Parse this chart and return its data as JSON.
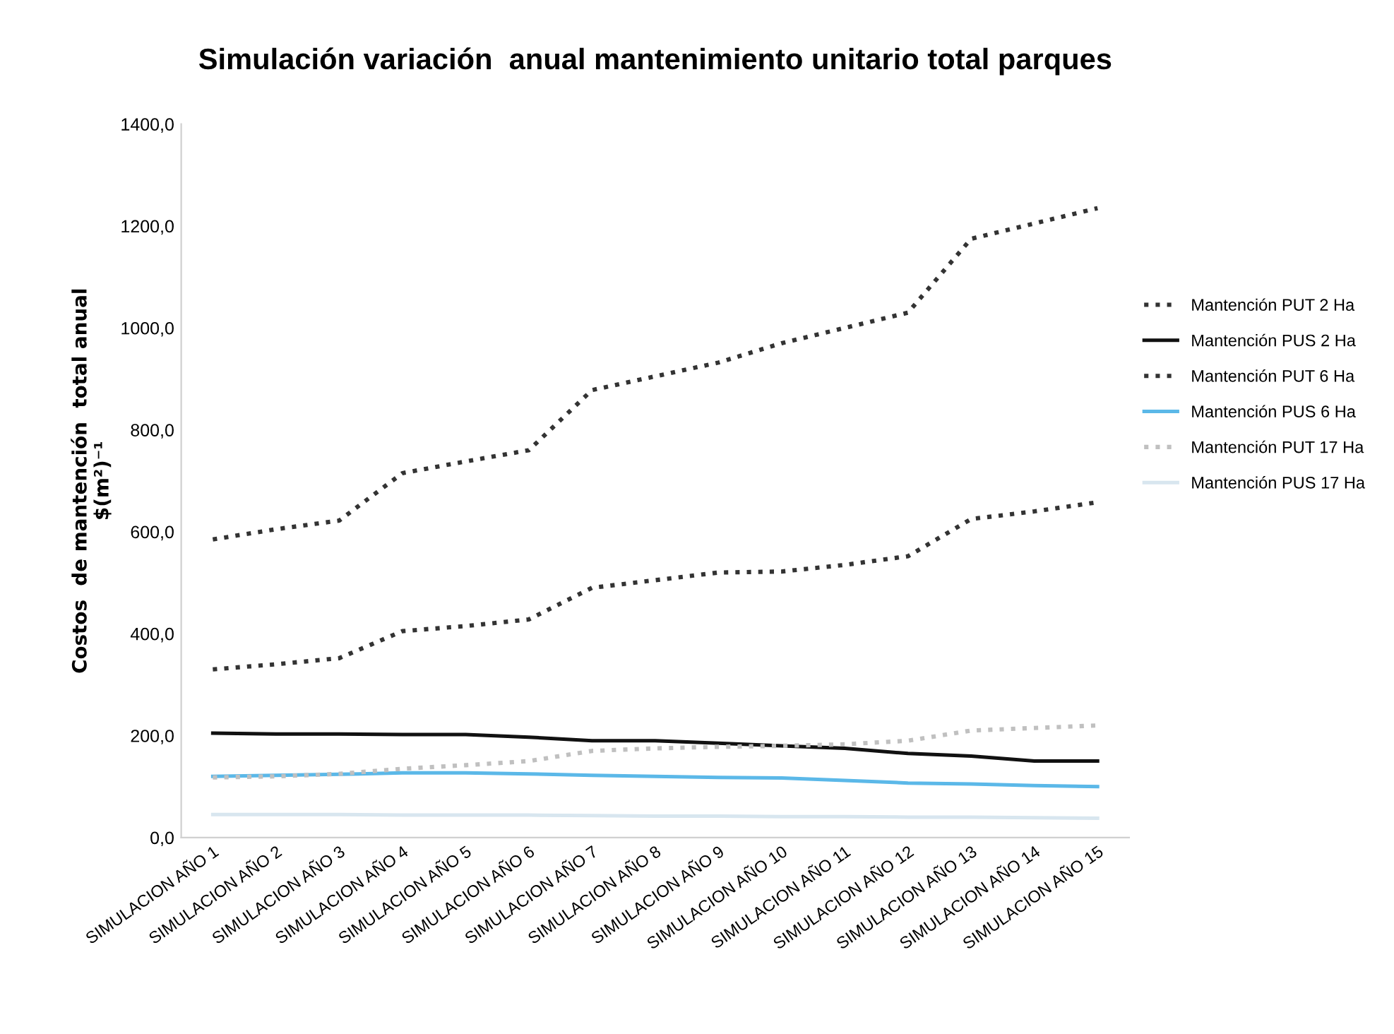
{
  "chart_data": {
    "type": "line",
    "title": "Simulación variación  anual mantenimiento unitario total parques",
    "ylabel": "Costos  de mantención  total anual\n$(m²)⁻¹",
    "categories": [
      "SIMULACION AÑO 1",
      "SIMULACION AÑO 2",
      "SIMULACION AÑO 3",
      "SIMULACION AÑO 4",
      "SIMULACION AÑO 5",
      "SIMULACION AÑO 6",
      "SIMULACION AÑO 7",
      "SIMULACION AÑO 8",
      "SIMULACION AÑO 9",
      "SIMULACION AÑO 10",
      "SIMULACION AÑO 11",
      "SIMULACION AÑO 12",
      "SIMULACION AÑO 13",
      "SIMULACION AÑO 14",
      "SIMULACION AÑO 15"
    ],
    "series": [
      {
        "name": "Mantención PUT 2 Ha",
        "color": "#333333",
        "line_style": "dotted",
        "values": [
          585,
          605,
          622,
          715,
          738,
          760,
          878,
          905,
          932,
          970,
          1000,
          1030,
          1175,
          1205,
          1235
        ]
      },
      {
        "name": "Mantención PUS 2 Ha",
        "color": "#111111",
        "line_style": "solid",
        "values": [
          205,
          203,
          203,
          202,
          202,
          197,
          190,
          190,
          185,
          180,
          175,
          165,
          160,
          150,
          150
        ]
      },
      {
        "name": "Mantención PUT 6 Ha",
        "color": "#333333",
        "line_style": "dotted",
        "values": [
          330,
          340,
          352,
          405,
          415,
          428,
          490,
          505,
          520,
          522,
          535,
          552,
          625,
          640,
          658
        ]
      },
      {
        "name": "Mantención PUS 6 Ha",
        "color": "#5bb8e8",
        "line_style": "solid",
        "values": [
          120,
          122,
          124,
          127,
          127,
          125,
          122,
          120,
          118,
          117,
          112,
          107,
          105,
          102,
          100
        ]
      },
      {
        "name": "Mantención PUT 17 Ha",
        "color": "#c0c0c0",
        "line_style": "dotted",
        "values": [
          118,
          120,
          125,
          135,
          142,
          150,
          170,
          175,
          178,
          180,
          183,
          190,
          210,
          215,
          220
        ]
      },
      {
        "name": "Mantención PUS 17 Ha",
        "color": "#d8e6ef",
        "line_style": "solid",
        "values": [
          45,
          45,
          45,
          44,
          44,
          44,
          43,
          42,
          42,
          41,
          41,
          40,
          40,
          39,
          38
        ]
      }
    ],
    "ylim": [
      0,
      1400
    ],
    "yticks": [
      {
        "value": 0,
        "label": "0,0"
      },
      {
        "value": 200,
        "label": "200,0"
      },
      {
        "value": 400,
        "label": "400,0"
      },
      {
        "value": 600,
        "label": "600,0"
      },
      {
        "value": 800,
        "label": "800,0"
      },
      {
        "value": 1000,
        "label": "1000,0"
      },
      {
        "value": 1200,
        "label": "1200,0"
      },
      {
        "value": 1400,
        "label": "1400,0"
      }
    ],
    "grid": false,
    "legend": "right",
    "marker": "none"
  }
}
